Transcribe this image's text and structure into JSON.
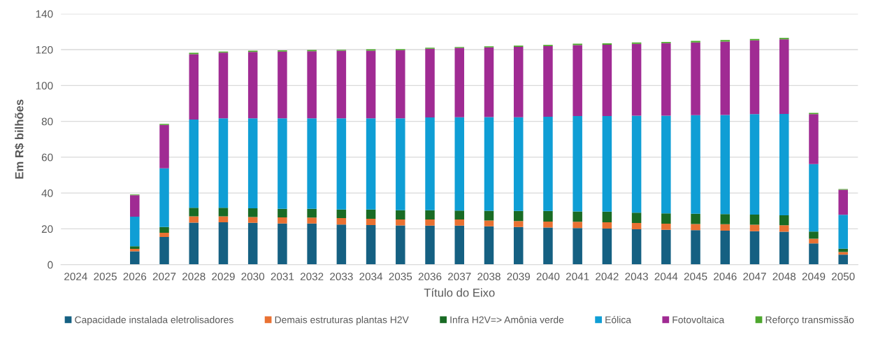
{
  "chart_data": {
    "type": "bar",
    "stacked": true,
    "xlabel": "Título do Eixo",
    "ylabel": "Em R$ bilhões",
    "categories": [
      "2024",
      "2025",
      "2026",
      "2027",
      "2028",
      "2029",
      "2030",
      "2031",
      "2032",
      "2033",
      "2034",
      "2035",
      "2036",
      "2037",
      "2038",
      "2039",
      "2040",
      "2041",
      "2042",
      "2043",
      "2044",
      "2045",
      "2046",
      "2047",
      "2048",
      "2049",
      "2050"
    ],
    "series": [
      {
        "name": "Capacidade instalada eletrolisadores",
        "color": "#156082",
        "values": [
          null,
          null,
          7.5,
          15.5,
          23.5,
          23.7,
          23.4,
          23,
          23,
          22.4,
          22.1,
          21.9,
          21.8,
          21.8,
          21.4,
          21,
          20.7,
          20.5,
          20.2,
          19.8,
          19.5,
          19.3,
          19,
          18.7,
          18.4,
          11.9,
          5.6
        ]
      },
      {
        "name": "Demais estruturas plantas H2V",
        "color": "#e97132",
        "values": [
          null,
          null,
          1.3,
          2.3,
          3.5,
          3.3,
          3.2,
          3.4,
          3.3,
          3.6,
          3.5,
          3.3,
          3.4,
          3.4,
          3.2,
          3.4,
          3.4,
          3.5,
          3.5,
          3.5,
          3.4,
          3.4,
          3.6,
          3.6,
          3.6,
          2.6,
          1.5
        ]
      },
      {
        "name": "Infra H2V=> Amônia verde",
        "color": "#196b24",
        "values": [
          null,
          null,
          1.5,
          3.2,
          4.8,
          4.8,
          4.9,
          4.8,
          4.9,
          4.8,
          5.2,
          5.2,
          5.2,
          5,
          5.5,
          5.6,
          5.9,
          5.7,
          5.9,
          5.7,
          5.7,
          5.7,
          5.7,
          5.7,
          5.6,
          4,
          1.8
        ]
      },
      {
        "name": "Eólica",
        "color": "#0f9ed5",
        "values": [
          null,
          null,
          16.5,
          32.8,
          49.2,
          49.9,
          50.2,
          50.5,
          50.5,
          50.9,
          50.9,
          51.3,
          51.8,
          52.1,
          52.3,
          52.3,
          52.6,
          53.3,
          53.4,
          54.2,
          54.6,
          55.1,
          55.3,
          56,
          56.5,
          37.6,
          19
        ]
      },
      {
        "name": "Fotovoltaica",
        "color": "#a02b93",
        "values": [
          null,
          null,
          12,
          24.2,
          36.5,
          36.7,
          37.1,
          37.3,
          37.4,
          37.7,
          37.7,
          38,
          38.3,
          38.7,
          38.9,
          39.3,
          39.4,
          39.6,
          39.8,
          40,
          40.4,
          40.5,
          40.9,
          41.2,
          41.7,
          27.9,
          13.9
        ]
      },
      {
        "name": "Reforço transmissão",
        "color": "#4ea72e",
        "values": [
          null,
          null,
          0.4,
          0.6,
          0.8,
          0.6,
          0.6,
          0.6,
          0.7,
          0.5,
          0.8,
          0.6,
          0.6,
          0.5,
          0.6,
          0.7,
          0.7,
          0.7,
          0.7,
          0.8,
          0.7,
          0.9,
          0.9,
          0.8,
          0.8,
          0.7,
          0.4
        ]
      }
    ],
    "ylim": [
      0,
      140
    ],
    "yticks": [
      0,
      20,
      40,
      60,
      80,
      100,
      120,
      140
    ],
    "grid": "y",
    "legend": "bottom"
  }
}
